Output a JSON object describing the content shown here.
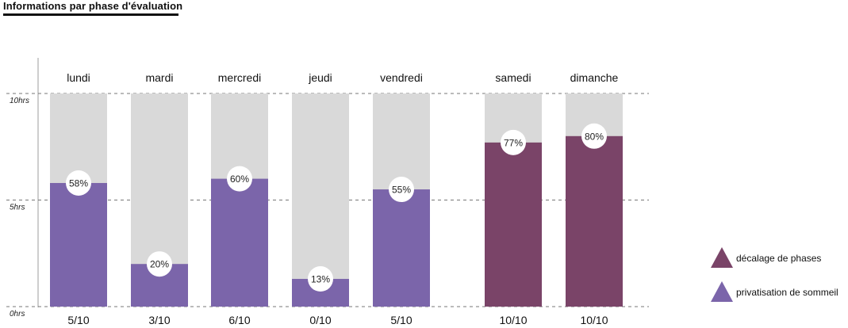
{
  "page": {
    "title": "Informations par phase d'évaluation"
  },
  "chart_data": {
    "type": "bar",
    "title": "Informations par phase d'évaluation",
    "y_unit": "hrs",
    "ylim": [
      0,
      10
    ],
    "y_ticks": [
      {
        "value": 10,
        "label": "10hrs"
      },
      {
        "value": 5,
        "label": "5hrs"
      },
      {
        "value": 0,
        "label": "0hrs"
      }
    ],
    "grid": "dashed horizontal lines at 0, 5, 10",
    "bar_max": 10,
    "categories": [
      "lundi",
      "mardi",
      "mercredi",
      "jeudi",
      "vendredi",
      "samedi",
      "dimanche"
    ],
    "percentages": [
      58,
      20,
      60,
      13,
      55,
      77,
      80
    ],
    "percentage_labels": [
      "58%",
      "20%",
      "60%",
      "13%",
      "55%",
      "77%",
      "80%"
    ],
    "scores": [
      "5/10",
      "3/10",
      "6/10",
      "0/10",
      "5/10",
      "10/10",
      "10/10"
    ],
    "series_per_category": [
      "privatisation  de sommeil",
      "privatisation  de sommeil",
      "privatisation  de sommeil",
      "privatisation  de sommeil",
      "privatisation  de sommeil",
      "décalage de phases",
      "décalage de phases"
    ],
    "legend": [
      {
        "name": "décalage de phases",
        "color": "#7a4468"
      },
      {
        "name": "privatisation  de sommeil",
        "color": "#7b65aa"
      }
    ],
    "legend_position": "bottom-right",
    "colors": {
      "background_bar": "#d9d9d9",
      "décalage de phases": "#7a4468",
      "privatisation  de sommeil": "#7b65aa",
      "badge": "#ffffff"
    }
  }
}
